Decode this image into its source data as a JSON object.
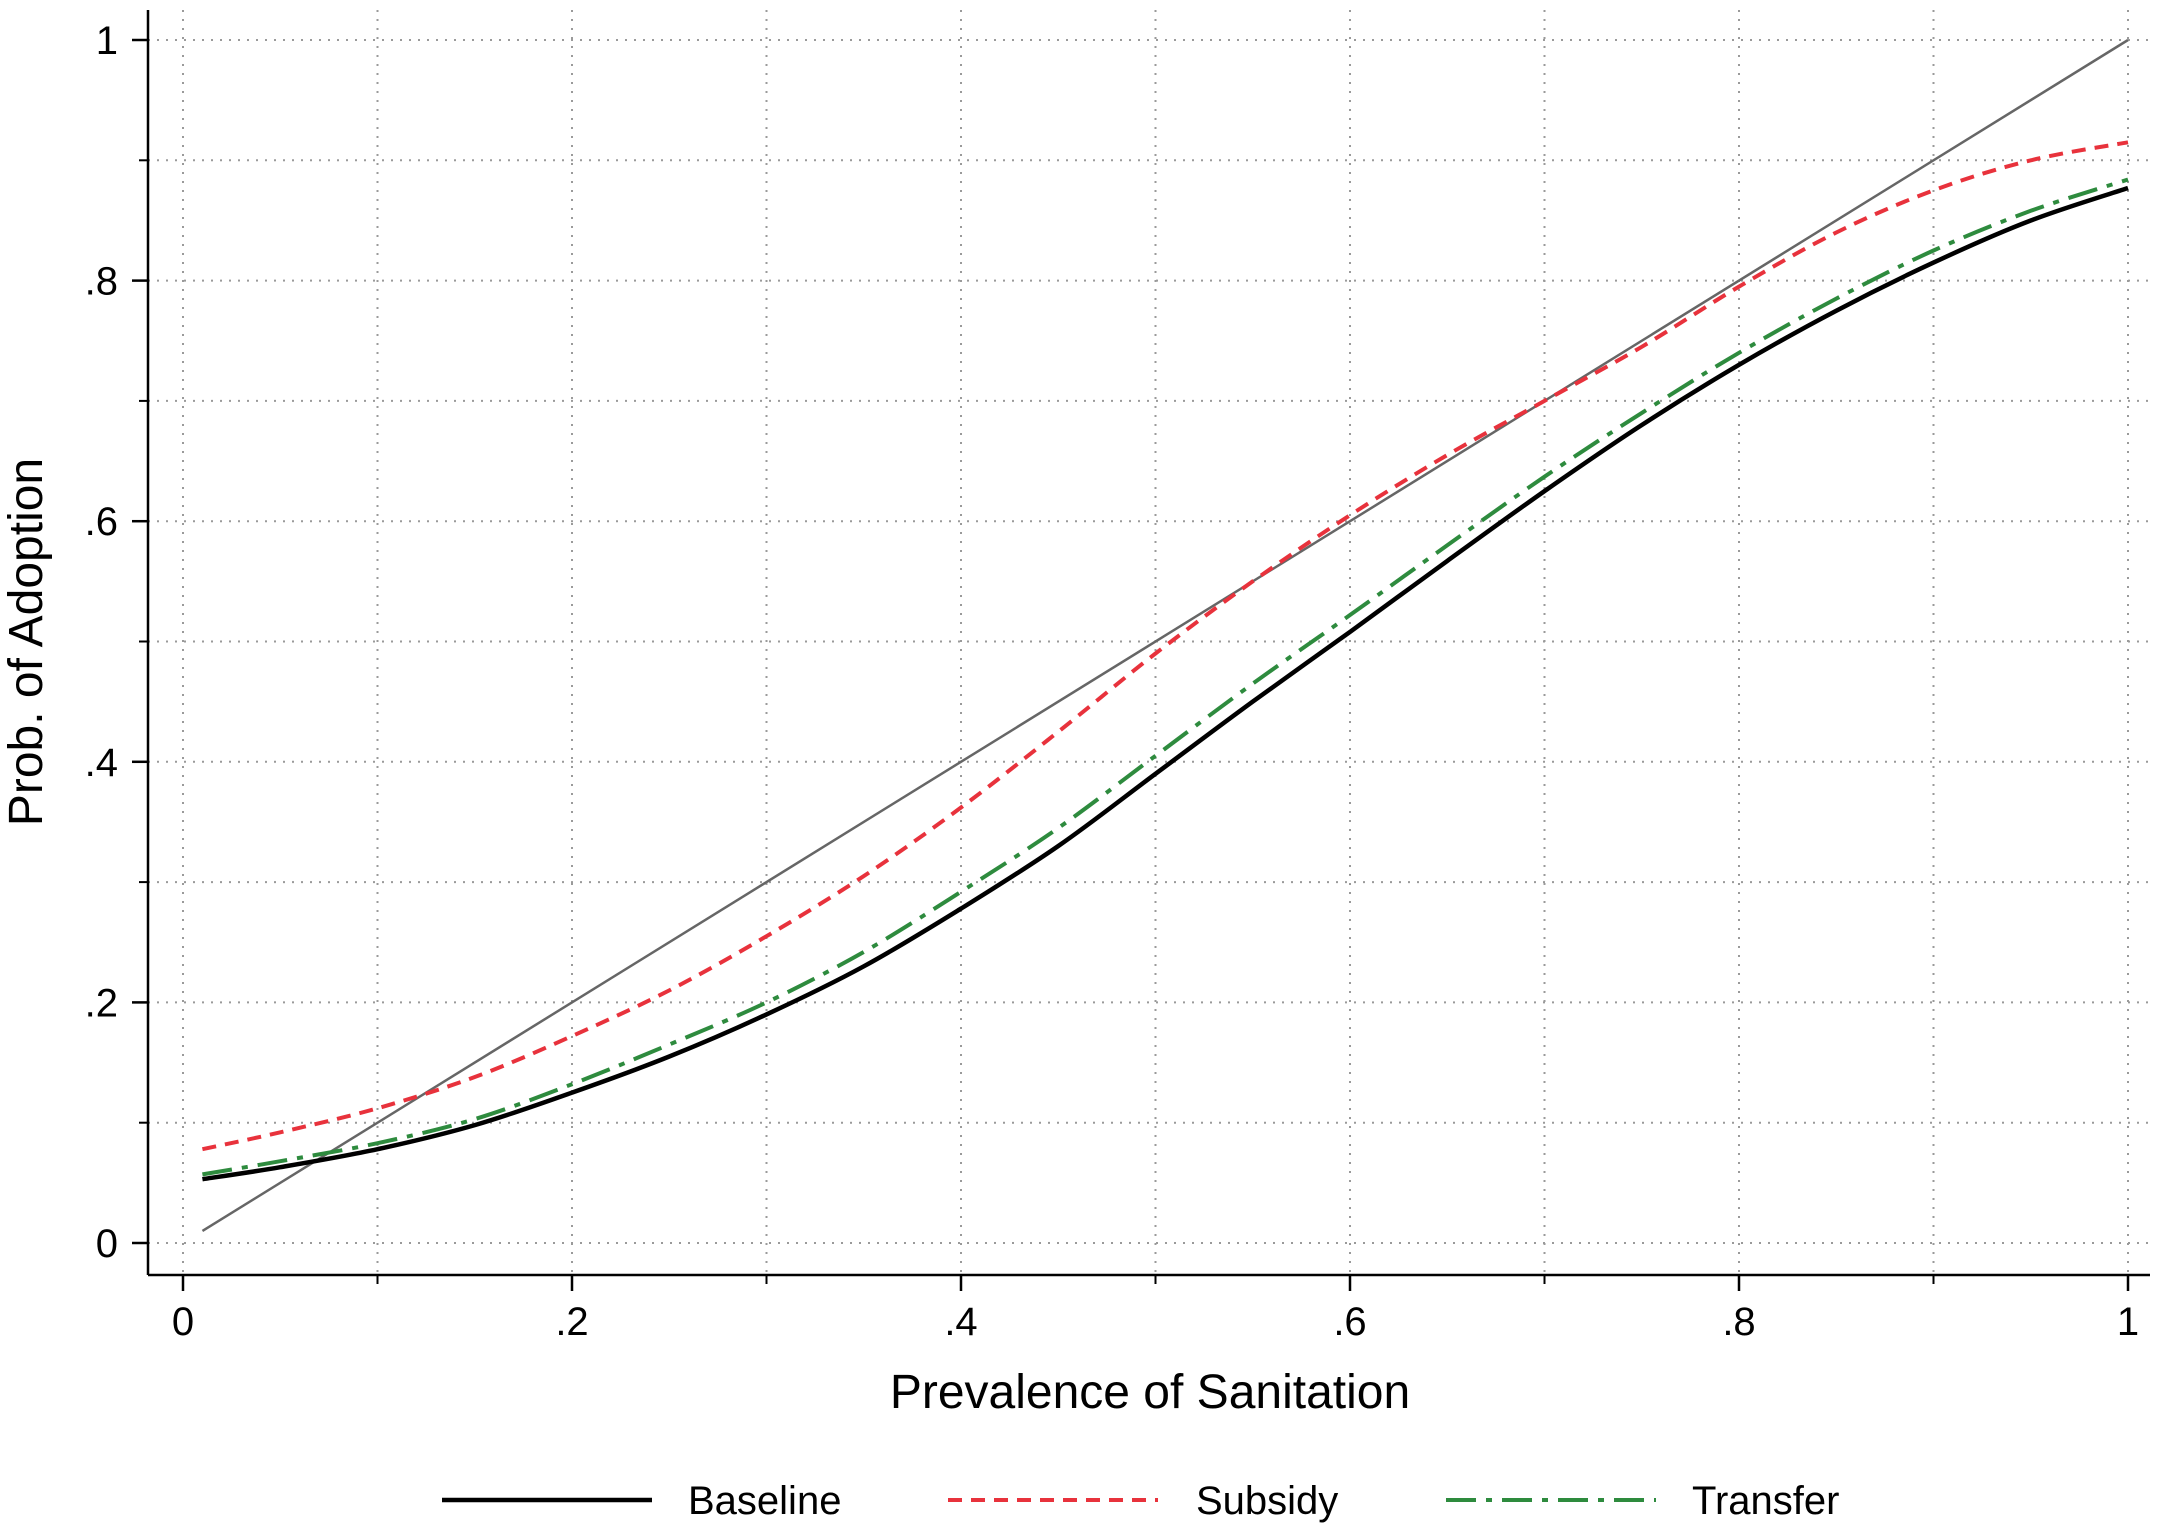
{
  "chart_data": {
    "type": "line",
    "xlabel": "Prevalence of Sanitation",
    "ylabel": "Prob. of Adoption",
    "xlim": [
      0,
      1
    ],
    "ylim": [
      0,
      1
    ],
    "x_ticks": [
      {
        "value": 0,
        "label": "0"
      },
      {
        "value": 0.2,
        "label": ".2"
      },
      {
        "value": 0.4,
        "label": ".4"
      },
      {
        "value": 0.6,
        "label": ".6"
      },
      {
        "value": 0.8,
        "label": ".8"
      },
      {
        "value": 1,
        "label": "1"
      }
    ],
    "y_ticks": [
      {
        "value": 0,
        "label": "0"
      },
      {
        "value": 0.2,
        "label": ".2"
      },
      {
        "value": 0.4,
        "label": ".4"
      },
      {
        "value": 0.6,
        "label": ".6"
      },
      {
        "value": 0.8,
        "label": ".8"
      },
      {
        "value": 1,
        "label": "1"
      }
    ],
    "minor_ticks": [
      0.1,
      0.3,
      0.5,
      0.7,
      0.9
    ],
    "grid": true,
    "legend_position": "bottom",
    "reference_line": {
      "x": [
        0.01,
        1
      ],
      "y": [
        0.01,
        1
      ],
      "color": "#666666"
    },
    "x": [
      0.01,
      0.05,
      0.1,
      0.15,
      0.2,
      0.25,
      0.3,
      0.35,
      0.4,
      0.45,
      0.5,
      0.55,
      0.6,
      0.65,
      0.7,
      0.75,
      0.8,
      0.85,
      0.9,
      0.95,
      1.0
    ],
    "series": [
      {
        "name": "Baseline",
        "color": "#000000",
        "style": "solid",
        "values": [
          0.053,
          0.063,
          0.078,
          0.098,
          0.125,
          0.155,
          0.19,
          0.23,
          0.278,
          0.33,
          0.39,
          0.45,
          0.508,
          0.567,
          0.625,
          0.68,
          0.73,
          0.775,
          0.815,
          0.85,
          0.877
        ]
      },
      {
        "name": "Subsidy",
        "color": "#e8323c",
        "style": "dashed",
        "values": [
          0.078,
          0.092,
          0.112,
          0.138,
          0.172,
          0.21,
          0.255,
          0.305,
          0.362,
          0.425,
          0.49,
          0.55,
          0.605,
          0.655,
          0.7,
          0.745,
          0.795,
          0.84,
          0.875,
          0.9,
          0.915
        ]
      },
      {
        "name": "Transfer",
        "color": "#2e8b3e",
        "style": "dashdot",
        "values": [
          0.057,
          0.068,
          0.083,
          0.103,
          0.132,
          0.165,
          0.2,
          0.242,
          0.292,
          0.345,
          0.405,
          0.465,
          0.522,
          0.58,
          0.637,
          0.69,
          0.74,
          0.785,
          0.825,
          0.858,
          0.884
        ]
      }
    ]
  }
}
